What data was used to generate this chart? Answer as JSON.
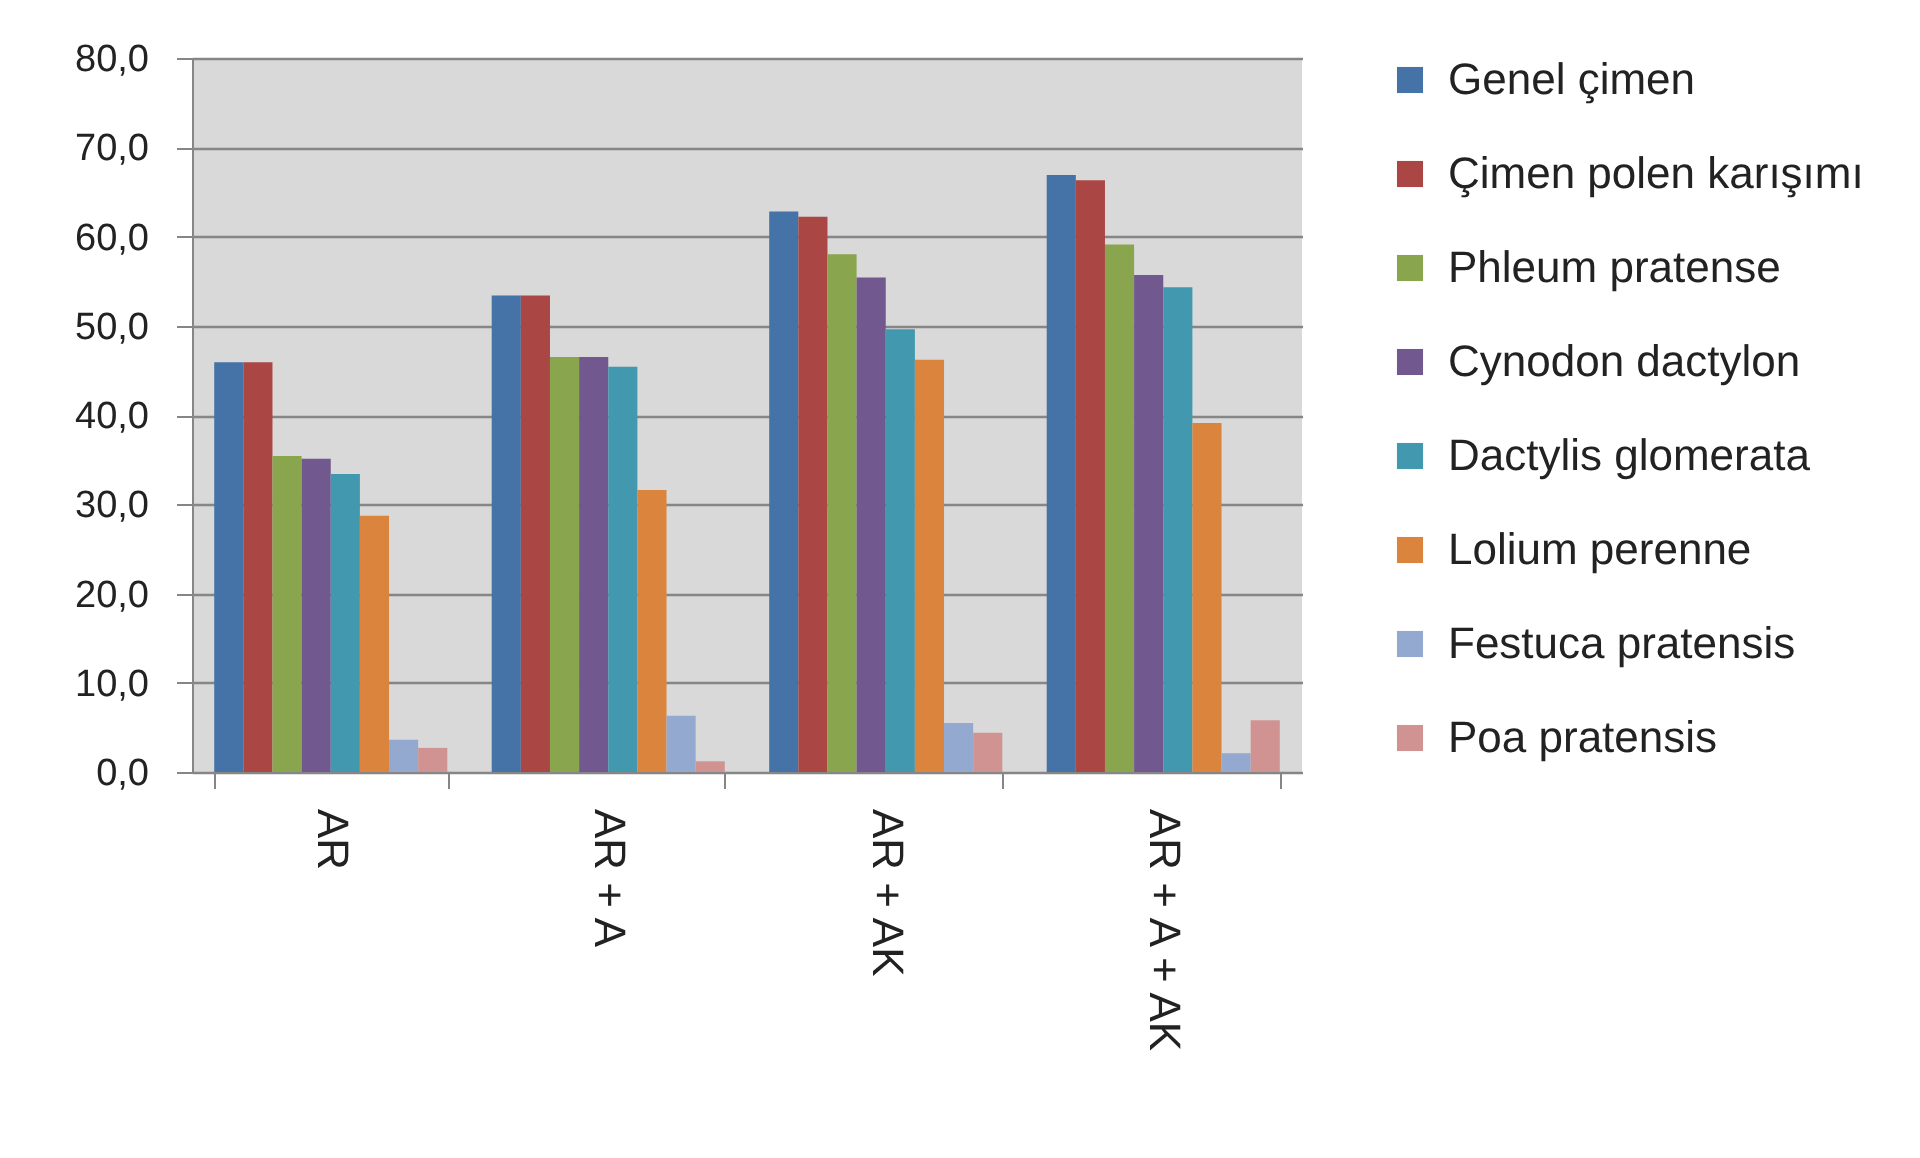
{
  "chart_data": {
    "type": "bar",
    "categories": [
      "AR",
      "AR + A",
      "AR + AK",
      "AR + A + AK"
    ],
    "series": [
      {
        "name": "Genel çimen",
        "color": "#4573a7",
        "values": [
          45.9,
          53.4,
          62.8,
          66.9
        ]
      },
      {
        "name": "Çimen polen karışımı",
        "color": "#aa4644",
        "values": [
          45.9,
          53.4,
          62.2,
          66.3
        ]
      },
      {
        "name": "Phleum pratense",
        "color": "#89a54e",
        "values": [
          35.4,
          46.5,
          58.0,
          59.1
        ]
      },
      {
        "name": "Cynodon dactylon",
        "color": "#71588f",
        "values": [
          35.1,
          46.5,
          55.4,
          55.7
        ]
      },
      {
        "name": "Dactylis glomerata",
        "color": "#4198af",
        "values": [
          33.4,
          45.4,
          49.6,
          54.3
        ]
      },
      {
        "name": "Lolium perenne",
        "color": "#db843d",
        "values": [
          28.7,
          31.6,
          46.2,
          39.1
        ]
      },
      {
        "name": "Festuca pratensis",
        "color": "#93a9cf",
        "values": [
          3.6,
          6.3,
          5.5,
          2.1
        ]
      },
      {
        "name": "Poa pratensis",
        "color": "#d19392",
        "values": [
          2.7,
          1.2,
          4.4,
          5.8
        ]
      }
    ],
    "ylim": [
      0,
      80
    ],
    "yticks": [
      {
        "value": 0,
        "label": "0,0"
      },
      {
        "value": 10,
        "label": "10,0"
      },
      {
        "value": 20,
        "label": "20,0"
      },
      {
        "value": 30,
        "label": "30,0"
      },
      {
        "value": 40,
        "label": "40,0"
      },
      {
        "value": 50,
        "label": "50,0"
      },
      {
        "value": 60,
        "label": "60,0"
      },
      {
        "value": 70,
        "label": "70,0"
      },
      {
        "value": 80,
        "label": "80,0"
      }
    ],
    "grid": "y",
    "legend": "right"
  }
}
